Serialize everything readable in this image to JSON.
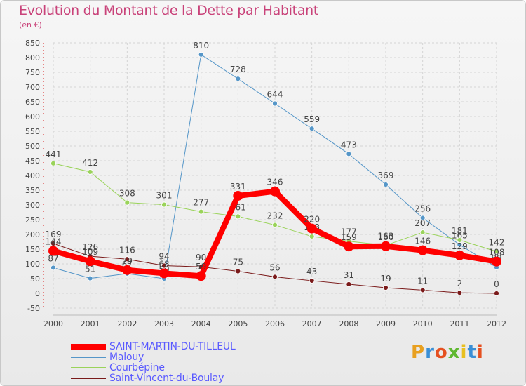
{
  "title": "Evolution du Montant de la Dette par Habitant",
  "unit": "(en €)",
  "logo": {
    "text": "Proxiti",
    "colors": [
      "#e8a020",
      "#3a8fd6",
      "#e55020",
      "#5fb830",
      "#e8c020",
      "#3a8fd6",
      "#e55020"
    ]
  },
  "chart_data": {
    "type": "line",
    "x": [
      "2000",
      "2001",
      "2002",
      "2003",
      "2004",
      "2005",
      "2006",
      "2007",
      "2008",
      "2009",
      "2010",
      "2011",
      "2012"
    ],
    "ylim": [
      -50,
      850
    ],
    "yticks": [
      -50,
      0,
      50,
      100,
      150,
      200,
      250,
      300,
      350,
      400,
      450,
      500,
      550,
      600,
      650,
      700,
      750,
      800,
      850
    ],
    "grid": true,
    "legend_position": "bottom-left",
    "series": [
      {
        "name": "SAINT-MARTIN-DU-TILLEUL",
        "color": "#ff0000",
        "width": 8,
        "values": [
          144,
          109,
          79,
          68,
          59,
          331,
          346,
          220,
          159,
          160,
          146,
          129,
          108
        ]
      },
      {
        "name": "Malouy",
        "color": "#5596c8",
        "width": 1,
        "values": [
          87,
          51,
          67,
          50,
          810,
          728,
          644,
          559,
          473,
          369,
          256,
          165,
          88
        ]
      },
      {
        "name": "Courbépine",
        "color": "#9ad35a",
        "width": 1,
        "values": [
          441,
          412,
          308,
          301,
          277,
          261,
          232,
          193,
          177,
          163,
          207,
          181,
          142
        ]
      },
      {
        "name": "Saint-Vincent-du-Boulay",
        "color": "#7a1a1a",
        "width": 1,
        "values": [
          169,
          126,
          116,
          94,
          90,
          75,
          56,
          43,
          31,
          19,
          11,
          2,
          0
        ]
      }
    ]
  }
}
